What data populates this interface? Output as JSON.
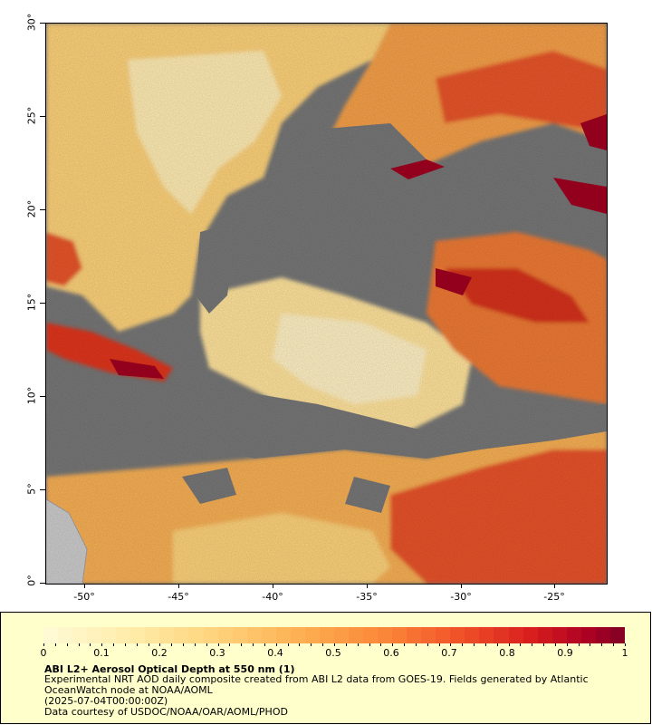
{
  "map": {
    "y_axis_labels": [
      "30°",
      "25°",
      "20°",
      "15°",
      "10°",
      "5°",
      "0°"
    ],
    "x_axis_labels": [
      "-50°",
      "-45°",
      "-40°",
      "-35°",
      "-30°",
      "-25°"
    ],
    "colors": {
      "no_data": "#777777",
      "land": "#cccccc",
      "low": "#ffeeb0",
      "mid": "#fdb04a",
      "high": "#e8381e",
      "max": "#80001e"
    }
  },
  "legend": {
    "colorbar_labels": [
      "0",
      "0.1",
      "0.2",
      "0.3",
      "0.4",
      "0.5",
      "0.6",
      "0.7",
      "0.8",
      "0.9",
      "1"
    ],
    "title": "ABI L2+ Aerosol Optical Depth at 550 nm (1)",
    "description_1": "Experimental NRT AOD daily composite created from ABI L2 data from GOES-19. Fields generated by Atlantic",
    "description_2": "OceanWatch node at NOAA/AOML",
    "date": "(2025-07-04T00:00:00Z)",
    "credit": "Data courtesy of USDOC/NOAA/OAR/AOML/PHOD"
  }
}
